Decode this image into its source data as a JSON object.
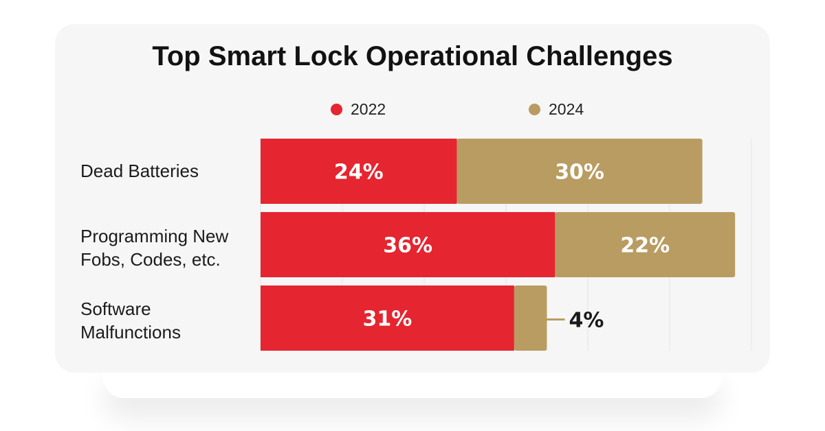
{
  "chart_data": {
    "type": "bar",
    "orientation": "horizontal",
    "stacked": true,
    "title": "Top Smart Lock Operational Challenges",
    "categories": [
      "Dead Batteries",
      "Programming  New\nFobs, Codes, etc.",
      "Software\nMalfunctions"
    ],
    "series": [
      {
        "name": "2022",
        "color": "#e52530",
        "values": [
          24,
          36,
          31
        ],
        "labels": [
          "24%",
          "36%",
          "31%"
        ]
      },
      {
        "name": "2024",
        "color": "#b99c62",
        "values": [
          30,
          22,
          4
        ],
        "labels": [
          "30%",
          "22%",
          "4%"
        ]
      }
    ],
    "xlim": [
      0,
      60
    ],
    "grid": true,
    "legend": "top"
  },
  "colors": {
    "card_background": "#f6f6f6",
    "gridline": "#e4e4e4",
    "label_inside": "#ffffff",
    "label_outside": "#1a1a1a"
  }
}
